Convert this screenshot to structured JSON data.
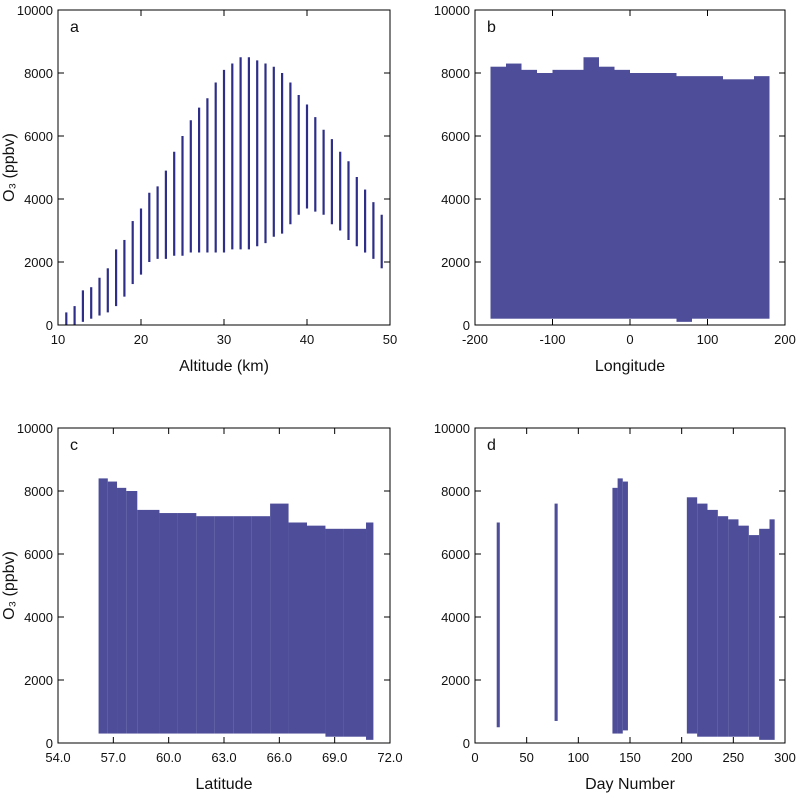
{
  "chart_data": [
    {
      "type": "range",
      "label": "a",
      "xlabel": "Altitude (km)",
      "ylabel": "O₃ (ppbv)",
      "color": "#2e2e88",
      "x": [
        11,
        12,
        13,
        14,
        15,
        16,
        17,
        18,
        19,
        20,
        21,
        22,
        23,
        24,
        25,
        26,
        27,
        28,
        29,
        30,
        31,
        32,
        33,
        34,
        35,
        36,
        37,
        38,
        39,
        40,
        41,
        42,
        43,
        44,
        45,
        46,
        47,
        48,
        49
      ],
      "low": [
        0,
        0,
        100,
        200,
        300,
        400,
        600,
        900,
        1300,
        1600,
        2000,
        2100,
        2100,
        2200,
        2200,
        2300,
        2300,
        2300,
        2300,
        2300,
        2400,
        2400,
        2400,
        2500,
        2600,
        2800,
        2900,
        3200,
        3500,
        3700,
        3600,
        3500,
        3200,
        3000,
        2700,
        2500,
        2300,
        2100,
        1800
      ],
      "high": [
        400,
        600,
        1100,
        1200,
        1500,
        1800,
        2400,
        2700,
        3300,
        3700,
        4200,
        4400,
        4900,
        5500,
        6000,
        6500,
        6900,
        7200,
        7700,
        8100,
        8300,
        8500,
        8500,
        8400,
        8300,
        8200,
        8000,
        7700,
        7300,
        7000,
        6600,
        6200,
        5900,
        5500,
        5200,
        4700,
        4300,
        3900,
        3500
      ],
      "xlim": [
        10,
        50
      ],
      "xticks": [
        10,
        20,
        30,
        40,
        50
      ],
      "ylim": [
        0,
        10000
      ],
      "yticks": [
        0,
        2000,
        4000,
        6000,
        8000,
        10000
      ]
    },
    {
      "type": "binned_range",
      "label": "b",
      "xlabel": "Longitude",
      "color": "#2e2e88",
      "bins": [
        -180,
        -160,
        -140,
        -120,
        -100,
        -80,
        -60,
        -40,
        -20,
        0,
        20,
        40,
        60,
        80,
        100,
        120,
        140,
        160,
        180
      ],
      "low": [
        200,
        200,
        200,
        200,
        200,
        200,
        200,
        200,
        200,
        200,
        200,
        200,
        100,
        200,
        200,
        200,
        200,
        200
      ],
      "high": [
        8200,
        8300,
        8100,
        8000,
        8100,
        8100,
        8500,
        8200,
        8100,
        8000,
        8000,
        8000,
        7900,
        7900,
        7900,
        7800,
        7800,
        7900
      ],
      "xlim": [
        -200,
        200
      ],
      "xticks": [
        -200,
        -100,
        0,
        100,
        200
      ],
      "ylim": [
        0,
        10000
      ],
      "yticks": [
        0,
        2000,
        4000,
        6000,
        8000,
        10000
      ]
    },
    {
      "type": "binned_range",
      "label": "c",
      "xlabel": "Latitude",
      "ylabel": "O₃ (ppbv)",
      "color": "#2e2e88",
      "bins": [
        56.2,
        56.7,
        57.2,
        57.7,
        58.3,
        59.5,
        60.5,
        61.5,
        62.5,
        63.5,
        64.5,
        65.5,
        66.5,
        67.5,
        68.5,
        69.5,
        70.7,
        71.1
      ],
      "low": [
        300,
        300,
        300,
        300,
        300,
        300,
        300,
        300,
        300,
        300,
        300,
        300,
        300,
        300,
        200,
        200,
        100
      ],
      "high": [
        8400,
        8300,
        8100,
        8000,
        7400,
        7300,
        7300,
        7200,
        7200,
        7200,
        7200,
        7600,
        7000,
        6900,
        6800,
        6800,
        7000
      ],
      "xlim": [
        54,
        72
      ],
      "xticks": [
        {
          "value": 54,
          "label": "54.0"
        },
        {
          "value": 57,
          "label": "57.0"
        },
        {
          "value": 60,
          "label": "60.0"
        },
        {
          "value": 63,
          "label": "63.0"
        },
        {
          "value": 66,
          "label": "66.0"
        },
        {
          "value": 69,
          "label": "69.0"
        },
        {
          "value": 72,
          "label": "72.0"
        }
      ],
      "ylim": [
        0,
        10000
      ],
      "yticks": [
        0,
        2000,
        4000,
        6000,
        8000,
        10000
      ]
    },
    {
      "type": "binned_range",
      "label": "d",
      "xlabel": "Day Number",
      "color": "#2e2e88",
      "bins": [
        21,
        24,
        77,
        80,
        133,
        138,
        143,
        148,
        205,
        215,
        225,
        235,
        245,
        255,
        265,
        275,
        285,
        290
      ],
      "low": [
        500,
        null,
        700,
        null,
        300,
        300,
        400,
        null,
        300,
        200,
        200,
        200,
        200,
        200,
        200,
        100,
        100
      ],
      "high": [
        7000,
        null,
        7600,
        null,
        8100,
        8400,
        8300,
        null,
        7800,
        7600,
        7400,
        7200,
        7100,
        6900,
        6600,
        6800,
        7100
      ],
      "xlim": [
        0,
        300
      ],
      "xticks": [
        0,
        50,
        100,
        150,
        200,
        250,
        300
      ],
      "ylim": [
        0,
        10000
      ],
      "yticks": [
        0,
        2000,
        4000,
        6000,
        8000,
        10000
      ]
    }
  ]
}
